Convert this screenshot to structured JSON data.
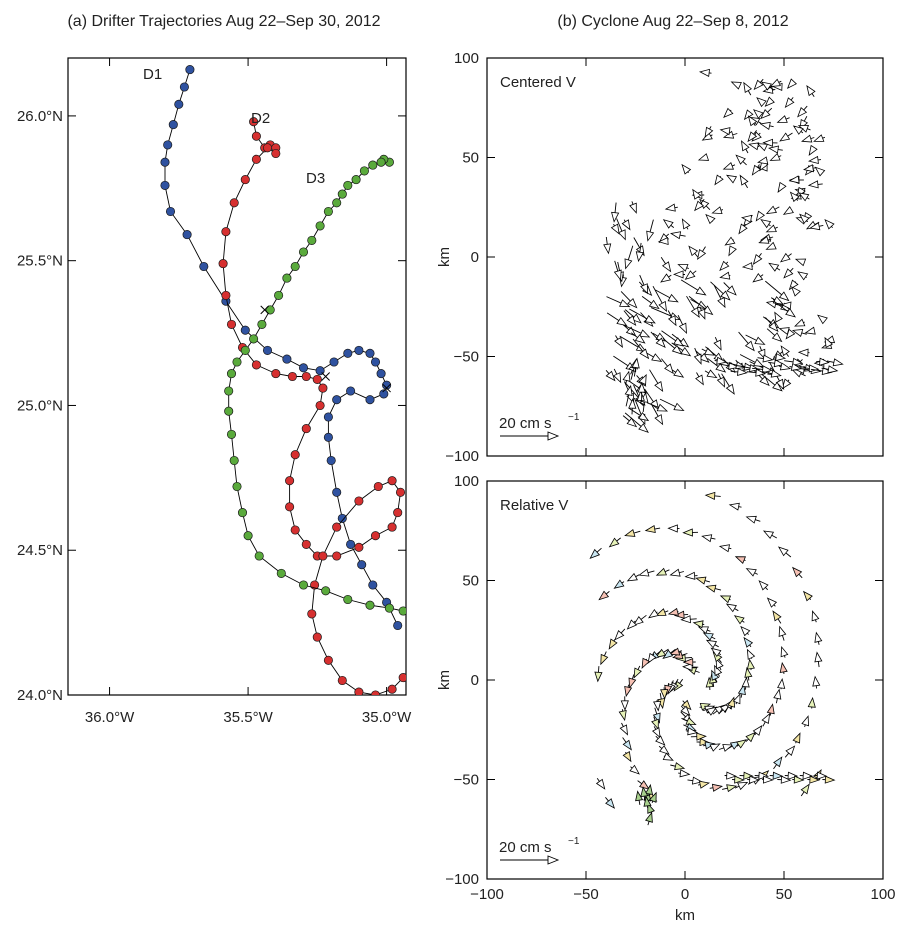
{
  "chart_data": [
    {
      "type": "scatter",
      "title": "(a) Drifter Trajectories Aug 22–Sep 30, 2012",
      "x_ticks": [
        "36.0°W",
        "35.5°W",
        "35.0°W"
      ],
      "y_ticks": [
        "24.0°N",
        "24.5°N",
        "25.0°N",
        "25.5°N",
        "26.0°N"
      ],
      "xlim": [
        -36.15,
        -34.93
      ],
      "ylim": [
        24.0,
        26.2
      ],
      "series": [
        {
          "name": "D1",
          "color": "#2f52a0",
          "lon": [
            -35.71,
            -35.73,
            -35.75,
            -35.77,
            -35.79,
            -35.8,
            -35.8,
            -35.78,
            -35.72,
            -35.66,
            -35.58,
            -35.51,
            -35.43,
            -35.36,
            -35.3,
            -35.24,
            -35.19,
            -35.14,
            -35.1,
            -35.06,
            -35.04,
            -35.02,
            -35.0,
            -35.01,
            -35.06,
            -35.13,
            -35.18,
            -35.21,
            -35.21,
            -35.2,
            -35.18,
            -35.16,
            -35.13,
            -35.09,
            -35.05,
            -35.0,
            -34.96
          ],
          "lat": [
            26.16,
            26.1,
            26.04,
            25.97,
            25.9,
            25.84,
            25.76,
            25.67,
            25.59,
            25.48,
            25.36,
            25.26,
            25.19,
            25.16,
            25.13,
            25.12,
            25.15,
            25.18,
            25.19,
            25.18,
            25.15,
            25.11,
            25.07,
            25.04,
            25.02,
            25.05,
            25.02,
            24.96,
            24.89,
            24.81,
            24.7,
            24.61,
            24.52,
            24.45,
            24.38,
            24.32,
            24.24
          ]
        },
        {
          "name": "D2",
          "color": "#d63030",
          "lon": [
            -35.48,
            -35.47,
            -35.44,
            -35.42,
            -35.4,
            -35.4,
            -35.43,
            -35.47,
            -35.51,
            -35.55,
            -35.58,
            -35.59,
            -35.58,
            -35.56,
            -35.52,
            -35.47,
            -35.4,
            -35.34,
            -35.29,
            -35.25,
            -35.23,
            -35.24,
            -35.29,
            -35.33,
            -35.35,
            -35.35,
            -35.33,
            -35.29,
            -35.25,
            -35.18,
            -35.1,
            -35.04,
            -34.98,
            -34.96,
            -34.95,
            -34.98,
            -35.03,
            -35.1,
            -35.18,
            -35.23,
            -35.26,
            -35.27,
            -35.25,
            -35.21,
            -35.16,
            -35.1,
            -35.04,
            -34.98,
            -34.94
          ],
          "lat": [
            25.98,
            25.93,
            25.89,
            25.9,
            25.89,
            25.87,
            25.89,
            25.85,
            25.78,
            25.7,
            25.6,
            25.49,
            25.38,
            25.28,
            25.2,
            25.14,
            25.11,
            25.1,
            25.1,
            25.09,
            25.06,
            25.0,
            24.92,
            24.83,
            24.74,
            24.65,
            24.57,
            24.52,
            24.48,
            24.48,
            24.51,
            24.55,
            24.58,
            24.63,
            24.7,
            24.74,
            24.72,
            24.67,
            24.58,
            24.48,
            24.38,
            24.28,
            24.2,
            24.12,
            24.05,
            24.01,
            24.0,
            24.02,
            24.06
          ]
        },
        {
          "name": "D3",
          "color": "#5aaa3c",
          "lon": [
            -34.99,
            -35.01,
            -35.02,
            -35.05,
            -35.08,
            -35.11,
            -35.14,
            -35.16,
            -35.18,
            -35.21,
            -35.24,
            -35.27,
            -35.3,
            -35.33,
            -35.36,
            -35.39,
            -35.42,
            -35.45,
            -35.48,
            -35.51,
            -35.54,
            -35.56,
            -35.57,
            -35.57,
            -35.56,
            -35.55,
            -35.54,
            -35.52,
            -35.5,
            -35.46,
            -35.38,
            -35.3,
            -35.22,
            -35.14,
            -35.06,
            -34.99,
            -34.94
          ],
          "lat": [
            25.84,
            25.85,
            25.84,
            25.83,
            25.81,
            25.78,
            25.76,
            25.73,
            25.7,
            25.67,
            25.62,
            25.57,
            25.53,
            25.48,
            25.44,
            25.38,
            25.33,
            25.28,
            25.23,
            25.19,
            25.15,
            25.11,
            25.05,
            24.98,
            24.9,
            24.81,
            24.72,
            24.63,
            24.55,
            24.48,
            24.42,
            24.38,
            24.36,
            24.33,
            24.31,
            24.3,
            24.29
          ]
        }
      ],
      "labels": [
        "D1",
        "D2",
        "D3"
      ]
    },
    {
      "type": "scatter",
      "title": "(b) Cyclone Aug 22–Sep 8, 2012",
      "subtitle": "Centered V",
      "xlim": [
        -100,
        100
      ],
      "ylim": [
        -100,
        100
      ],
      "y_ticks": [
        "−100",
        "−50",
        "0",
        "50",
        "100"
      ],
      "ylabel": "km",
      "scale_label": "20 cm s",
      "scale_exp": "−1"
    },
    {
      "type": "scatter",
      "subtitle": "Relative V",
      "xlim": [
        -100,
        100
      ],
      "ylim": [
        -100,
        100
      ],
      "x_ticks": [
        "−100",
        "−50",
        "0",
        "50",
        "100"
      ],
      "y_ticks": [
        "−100",
        "−50",
        "0",
        "50",
        "100"
      ],
      "xlabel": "km",
      "ylabel": "km",
      "scale_label": "20 cm s",
      "scale_exp": "−1"
    }
  ]
}
